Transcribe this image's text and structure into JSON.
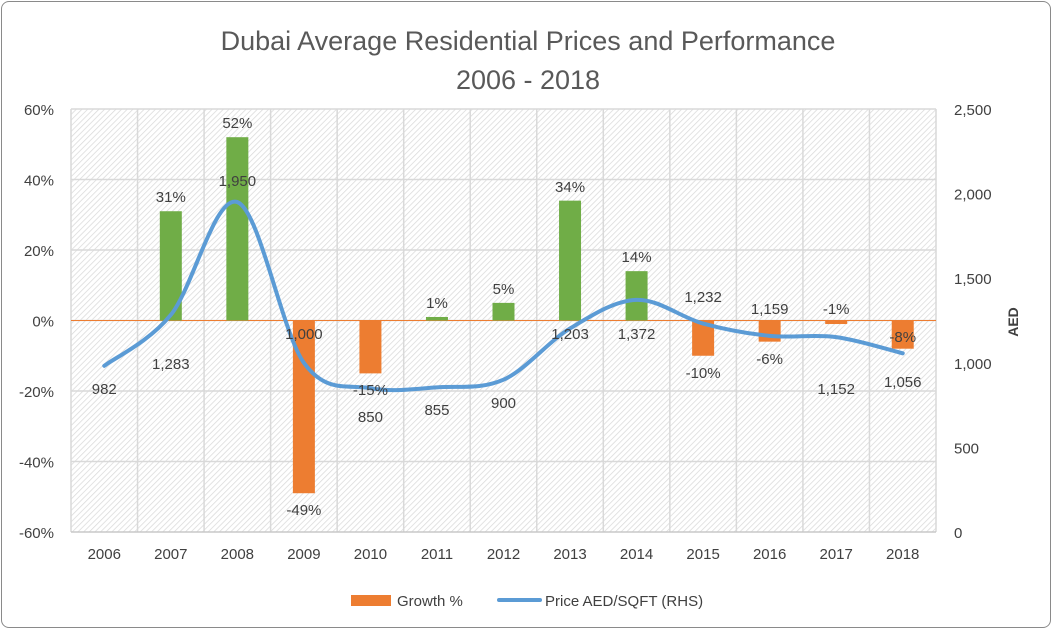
{
  "chart_data": {
    "type": "bar+line",
    "title_line1": "Dubai Average Residential Prices and Performance",
    "title_line2": "2006 - 2018",
    "categories": [
      "2006",
      "2007",
      "2008",
      "2009",
      "2010",
      "2011",
      "2012",
      "2013",
      "2014",
      "2015",
      "2016",
      "2017",
      "2018"
    ],
    "series": [
      {
        "name": "Growth %",
        "type": "bar",
        "axis": "left",
        "values": [
          null,
          31,
          52,
          -49,
          -15,
          1,
          5,
          34,
          14,
          -10,
          -6,
          -1,
          -8
        ],
        "labels": [
          "",
          "31%",
          "52%",
          "-49%",
          "-15%",
          "1%",
          "5%",
          "34%",
          "14%",
          "-10%",
          "-6%",
          "-1%",
          "-8%"
        ]
      },
      {
        "name": "Price AED/SQFT (RHS)",
        "type": "line",
        "axis": "right",
        "values": [
          982,
          1283,
          1950,
          1000,
          850,
          855,
          900,
          1203,
          1372,
          1232,
          1159,
          1152,
          1056
        ],
        "labels": [
          "982",
          "1,283",
          "1,950",
          "1,000",
          "850",
          "855",
          "900",
          "1,203",
          "1,372",
          "1,232",
          "1,159",
          "1,152",
          "1,056"
        ]
      }
    ],
    "left_axis": {
      "ylim": [
        -60,
        60
      ],
      "ticks": [
        "60%",
        "40%",
        "20%",
        "0%",
        "-20%",
        "-40%",
        "-60%"
      ]
    },
    "right_axis": {
      "label": "AED",
      "ylim": [
        0,
        2500
      ],
      "ticks": [
        "2,500",
        "2,000",
        "1,500",
        "1,000",
        "500",
        "0"
      ]
    },
    "grid": true,
    "legend_position": "bottom",
    "colors": {
      "positive_bar": "#70ad47",
      "negative_bar": "#ed7d31",
      "line": "#5b9bd5",
      "zero_line": "#ed7d31"
    }
  }
}
